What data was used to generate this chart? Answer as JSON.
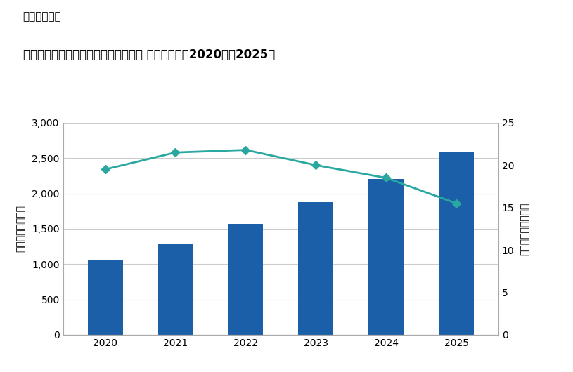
{
  "years": [
    "2020",
    "2021",
    "2022",
    "2023",
    "2024",
    "2025"
  ],
  "bar_values": [
    1055,
    1285,
    1570,
    1880,
    2205,
    2580
  ],
  "line_values": [
    19.5,
    21.5,
    21.8,
    20.0,
    18.5,
    15.5
  ],
  "bar_color": "#1a5fa8",
  "line_color": "#2aa8a0",
  "marker_style": "D",
  "marker_size": 6,
  "bar_ylim": [
    0,
    3000
  ],
  "line_ylim": [
    0,
    25
  ],
  "bar_yticks": [
    0,
    500,
    1000,
    1500,
    2000,
    2500,
    3000
  ],
  "line_yticks": [
    0,
    5,
    10,
    15,
    20,
    25
  ],
  "ylabel_left": "売上額（十億円）",
  "ylabel_right": "前年比成長率（％）",
  "super_title": "＜参考資料＞",
  "main_title": "国内パブリッククラウドサービス市場 売上額予測、2020年～2025年",
  "background_color": "#ffffff",
  "grid_color": "#cccccc",
  "super_title_fontsize": 11,
  "main_title_fontsize": 12,
  "tick_fontsize": 10,
  "ylabel_fontsize": 10
}
